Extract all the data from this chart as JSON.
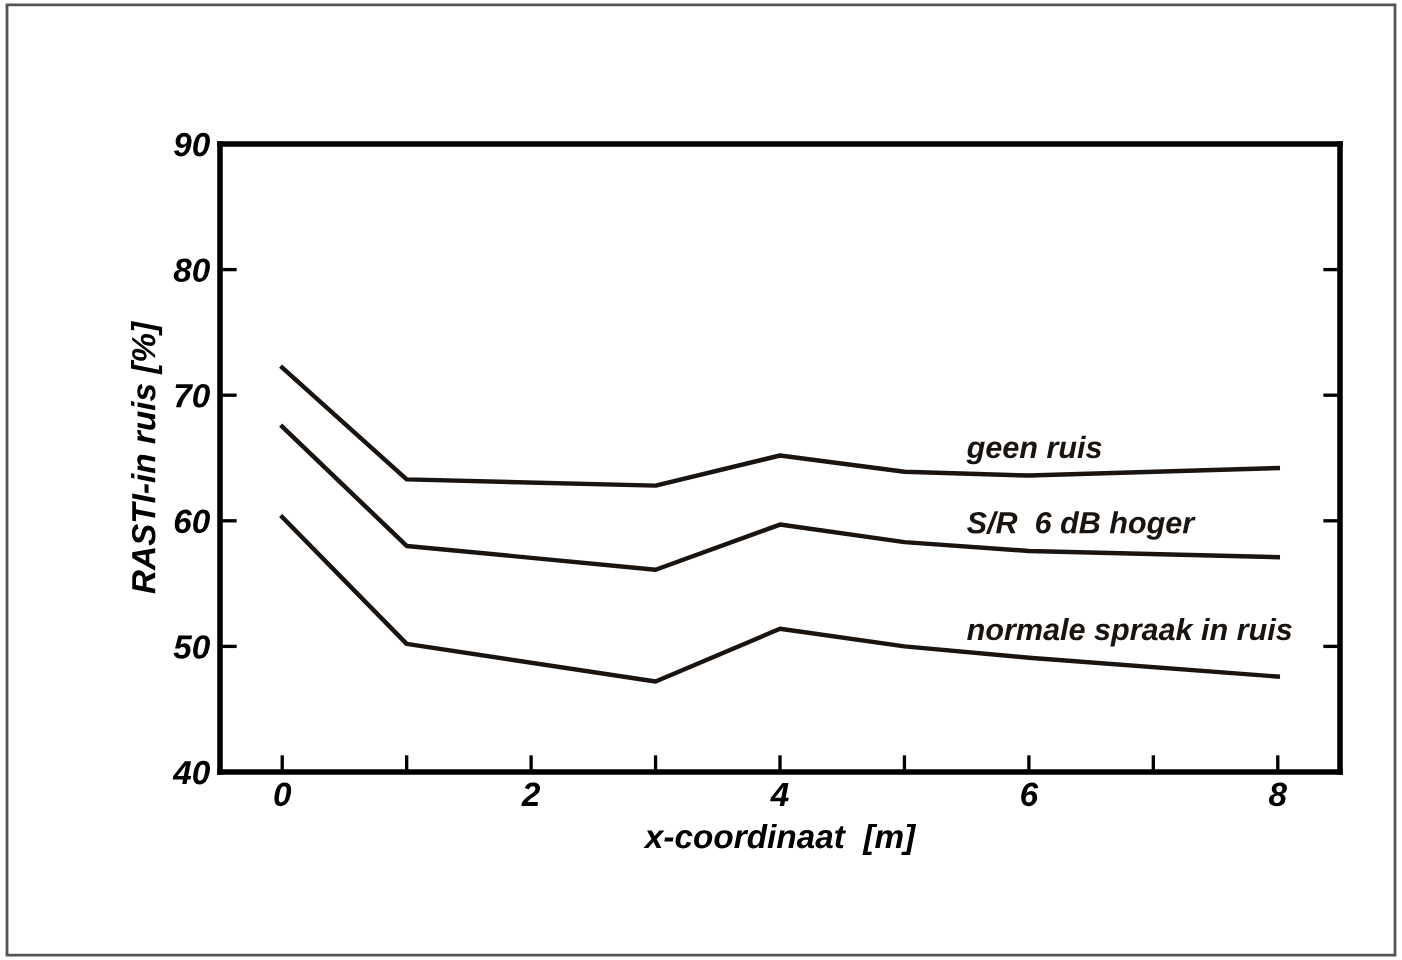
{
  "chart_data": {
    "type": "line",
    "xlabel": "x-coordinaat  [m]",
    "ylabel": "RASTI-in ruis [%]",
    "xlim": [
      -0.5,
      8.5
    ],
    "ylim": [
      40,
      90
    ],
    "xticks": [
      0,
      {
        "value": 1,
        "label": null
      },
      2,
      {
        "value": 3,
        "label": null
      },
      4,
      {
        "value": 5,
        "label": null
      },
      6,
      {
        "value": 7,
        "label": null
      },
      8
    ],
    "yticks": [
      40,
      50,
      60,
      70,
      80,
      90
    ],
    "x": [
      0,
      1,
      3,
      4,
      5,
      6,
      8
    ],
    "series": [
      {
        "name": "geen ruis",
        "color": "#1a1410",
        "values": [
          72.2,
          63.3,
          62.8,
          65.2,
          63.9,
          63.6,
          64.2
        ]
      },
      {
        "name": "S/R  6 dB hoger",
        "color": "#1a1410",
        "values": [
          67.5,
          58.0,
          56.1,
          59.7,
          58.3,
          57.6,
          57.1
        ]
      },
      {
        "name": "normale spraak in ruis",
        "color": "#1a1410",
        "values": [
          60.3,
          50.2,
          47.2,
          51.4,
          50.0,
          49.1,
          47.6
        ]
      }
    ],
    "grid": false,
    "legend": false,
    "marker": "none",
    "line_style": "solid"
  }
}
